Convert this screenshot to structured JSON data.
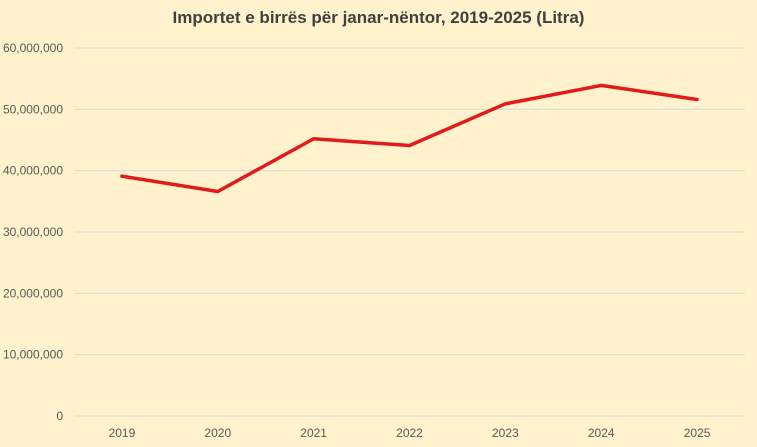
{
  "chart_data": {
    "type": "line",
    "title": "Importet e birrës për janar-nëntor, 2019-2025 (Litra)",
    "xlabel": "",
    "ylabel": "",
    "categories": [
      "2019",
      "2020",
      "2021",
      "2022",
      "2023",
      "2024",
      "2025"
    ],
    "series": [
      {
        "values": [
          39100000,
          36600000,
          45200000,
          44100000,
          50900000,
          53900000,
          51600000
        ]
      }
    ],
    "ylim": [
      0,
      60000000
    ],
    "yticks": [
      0,
      10000000,
      20000000,
      30000000,
      40000000,
      50000000,
      60000000
    ],
    "ytick_labels": [
      "0",
      "10,000,000",
      "20,000,000",
      "30,000,000",
      "40,000,000",
      "50,000,000",
      "60,000,000"
    ],
    "grid": true,
    "legend": "none",
    "colors": {
      "background": "#fff2cc",
      "line": "#e31a1c",
      "grid": "#d9d9d9",
      "text": "#595959",
      "title": "#404040"
    }
  }
}
